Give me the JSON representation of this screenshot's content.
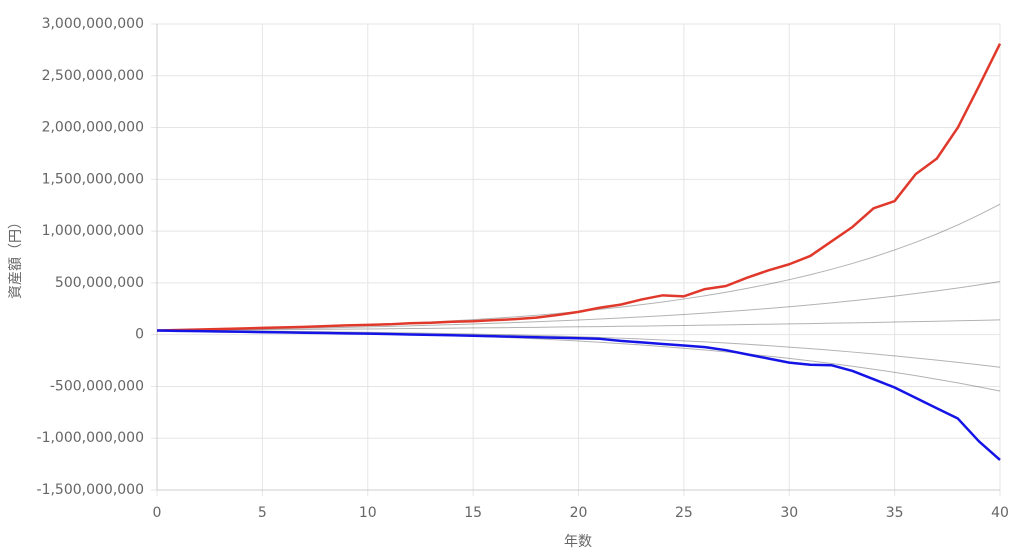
{
  "chart_data": {
    "type": "line",
    "x_label": "年数",
    "y_label": "資産額（円）",
    "x": [
      0,
      1,
      2,
      3,
      4,
      5,
      6,
      7,
      8,
      9,
      10,
      11,
      12,
      13,
      14,
      15,
      16,
      17,
      18,
      19,
      20,
      21,
      22,
      23,
      24,
      25,
      26,
      27,
      28,
      29,
      30,
      31,
      32,
      33,
      34,
      35,
      36,
      37,
      38,
      39,
      40
    ],
    "xlim": [
      0,
      40
    ],
    "xticks": [
      0,
      5,
      10,
      15,
      20,
      25,
      30,
      35,
      40
    ],
    "ylim": [
      -1500000000,
      3000000000
    ],
    "yticks": [
      {
        "value": -1500000000,
        "label": "-1,500,000,000"
      },
      {
        "value": -1000000000,
        "label": "-1,000,000,000"
      },
      {
        "value": -500000000,
        "label": "-500,000,000"
      },
      0,
      {
        "value": 500000000,
        "label": "500,000,000"
      },
      {
        "value": 1000000000,
        "label": "1,000,000,000"
      },
      {
        "value": 1500000000,
        "label": "1,500,000,000"
      },
      {
        "value": 2000000000,
        "label": "2,000,000,000"
      },
      {
        "value": 2500000000,
        "label": "2,500,000,000"
      },
      {
        "value": 3000000000,
        "label": "3,000,000,000"
      }
    ],
    "grid": true,
    "series": [
      {
        "color": "rgba(0,0,0,0.3)",
        "values": [
          40000000,
          44000000,
          48000000,
          52000000,
          57000000,
          62000000,
          68000000,
          74000000,
          80000000,
          87000000,
          95000000,
          103000000,
          112000000,
          122000000,
          133000000,
          145000000,
          158000000,
          172000000,
          188000000,
          205000000,
          224000000,
          244000000,
          266000000,
          290000000,
          316000000,
          345000000,
          376000000,
          410000000,
          447000000,
          487000000,
          531000000,
          579000000,
          631000000,
          688000000,
          750000000,
          818000000,
          892000000,
          972000000,
          1060000000,
          1156000000,
          1260000000
        ]
      },
      {
        "color": "rgba(0,0,0,0.3)",
        "values": [
          40000000,
          42000000,
          45000000,
          48000000,
          51000000,
          54000000,
          58000000,
          62000000,
          66000000,
          70000000,
          75000000,
          80000000,
          85000000,
          91000000,
          97000000,
          103000000,
          110000000,
          117000000,
          125000000,
          133000000,
          142000000,
          151000000,
          161000000,
          172000000,
          183000000,
          195000000,
          208000000,
          222000000,
          237000000,
          253000000,
          270000000,
          288000000,
          307000000,
          327000000,
          349000000,
          372000000,
          397000000,
          423000000,
          451000000,
          481000000,
          513000000
        ]
      },
      {
        "color": "rgba(0,0,0,0.3)",
        "values": [
          40000000,
          41000000,
          43000000,
          44000000,
          46000000,
          47000000,
          49000000,
          50000000,
          52000000,
          54000000,
          55000000,
          57000000,
          59000000,
          61000000,
          63000000,
          65000000,
          67000000,
          69000000,
          71000000,
          74000000,
          76000000,
          78000000,
          81000000,
          83000000,
          86000000,
          89000000,
          92000000,
          95000000,
          98000000,
          101000000,
          104000000,
          107000000,
          111000000,
          114000000,
          118000000,
          122000000,
          126000000,
          130000000,
          134000000,
          138000000,
          143000000
        ]
      },
      {
        "color": "rgba(0,0,0,0.3)",
        "values": [
          40000000,
          39000000,
          38000000,
          37000000,
          35000000,
          34000000,
          32000000,
          30000000,
          28000000,
          26000000,
          23000000,
          20000000,
          17000000,
          14000000,
          10000000,
          6000000,
          2000000,
          -3000000,
          -8000000,
          -14000000,
          -20000000,
          -27000000,
          -34000000,
          -42000000,
          -51000000,
          -60000000,
          -70000000,
          -81000000,
          -93000000,
          -106000000,
          -120000000,
          -135000000,
          -151000000,
          -168000000,
          -186000000,
          -205000000,
          -225000000,
          -246000000,
          -268000000,
          -291000000,
          -315000000
        ]
      },
      {
        "color": "rgba(0,0,0,0.3)",
        "values": [
          40000000,
          39000000,
          37000000,
          35000000,
          33000000,
          31000000,
          28000000,
          25000000,
          22000000,
          18000000,
          14000000,
          9000000,
          4000000,
          -2000000,
          -8000000,
          -15000000,
          -23000000,
          -31000000,
          -40000000,
          -50000000,
          -61000000,
          -73000000,
          -86000000,
          -100000000,
          -115000000,
          -131000000,
          -148000000,
          -166000000,
          -186000000,
          -207000000,
          -229000000,
          -253000000,
          -278000000,
          -305000000,
          -334000000,
          -364000000,
          -396000000,
          -430000000,
          -466000000,
          -504000000,
          -544000000
        ]
      },
      {
        "color": "#e0392b",
        "values": [
          40000000,
          45000000,
          50000000,
          55000000,
          60000000,
          65000000,
          70000000,
          75000000,
          82000000,
          90000000,
          95000000,
          100000000,
          110000000,
          115000000,
          125000000,
          130000000,
          140000000,
          150000000,
          165000000,
          190000000,
          220000000,
          260000000,
          290000000,
          340000000,
          380000000,
          370000000,
          440000000,
          470000000,
          550000000,
          620000000,
          680000000,
          760000000,
          900000000,
          1040000000,
          1220000000,
          1290000000,
          1550000000,
          1700000000,
          2000000000,
          2400000000,
          2810000000
        ]
      },
      {
        "color": "#1414e6",
        "values": [
          40000000,
          37000000,
          34000000,
          31000000,
          28000000,
          25000000,
          22000000,
          19000000,
          16000000,
          13000000,
          10000000,
          6000000,
          2000000,
          -2000000,
          -6000000,
          -10000000,
          -15000000,
          -20000000,
          -25000000,
          -30000000,
          -35000000,
          -40000000,
          -60000000,
          -75000000,
          -90000000,
          -105000000,
          -120000000,
          -150000000,
          -190000000,
          -230000000,
          -270000000,
          -290000000,
          -295000000,
          -350000000,
          -430000000,
          -510000000,
          -610000000,
          -710000000,
          -810000000,
          -1030000000,
          -1210000000
        ]
      }
    ]
  }
}
